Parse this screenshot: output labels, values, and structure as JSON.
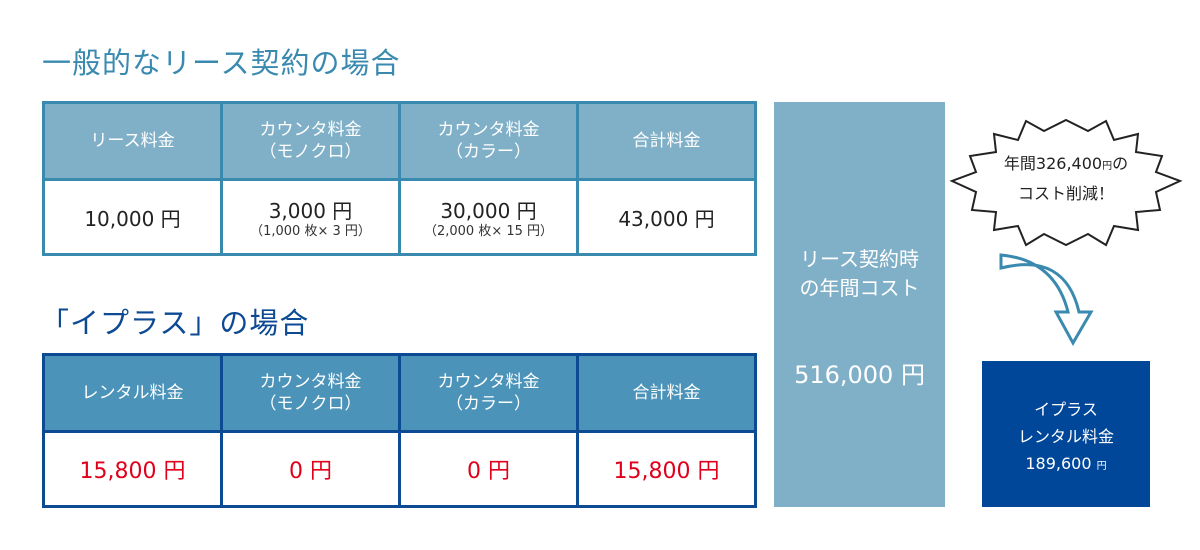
{
  "section1": {
    "title": "一般的なリース契約の場合",
    "headers": [
      {
        "line1": "リース料金",
        "line2": ""
      },
      {
        "line1": "カウンタ料金",
        "line2": "（モノクロ）"
      },
      {
        "line1": "カウンタ料金",
        "line2": "（カラー）"
      },
      {
        "line1": "合計料金",
        "line2": ""
      }
    ],
    "values": [
      {
        "main": "10,000 円",
        "sub": ""
      },
      {
        "main": "3,000 円",
        "sub": "（1,000 枚× 3 円）"
      },
      {
        "main": "30,000 円",
        "sub": "（2,000 枚× 15 円）"
      },
      {
        "main": "43,000 円",
        "sub": ""
      }
    ]
  },
  "section2": {
    "title": "「イプラス」の場合",
    "headers": [
      {
        "line1": "レンタル料金",
        "line2": ""
      },
      {
        "line1": "カウンタ料金",
        "line2": "（モノクロ）"
      },
      {
        "line1": "カウンタ料金",
        "line2": "（カラー）"
      },
      {
        "line1": "合計料金",
        "line2": ""
      }
    ],
    "values": [
      "15,800 円",
      "0 円",
      "0 円",
      "15,800 円"
    ]
  },
  "annual_cost": {
    "line1": "リース契約時",
    "line2": "の年間コスト",
    "value": "516,000 円"
  },
  "savings": {
    "line1_prefix": "年間326,400",
    "line1_unit": "円",
    "line1_suffix": "の",
    "line2": "コスト削減！"
  },
  "iplus_result": {
    "line1": "イプラス",
    "line2": "レンタル料金",
    "value": "189,600",
    "unit": "円"
  },
  "colors": {
    "lease_header": "#80b0c8",
    "lease_border": "#3a8ab0",
    "iplus_header": "#4b93b8",
    "iplus_border": "#0d4a94",
    "highlight_red": "#e0001b",
    "result_box": "#00479a"
  }
}
